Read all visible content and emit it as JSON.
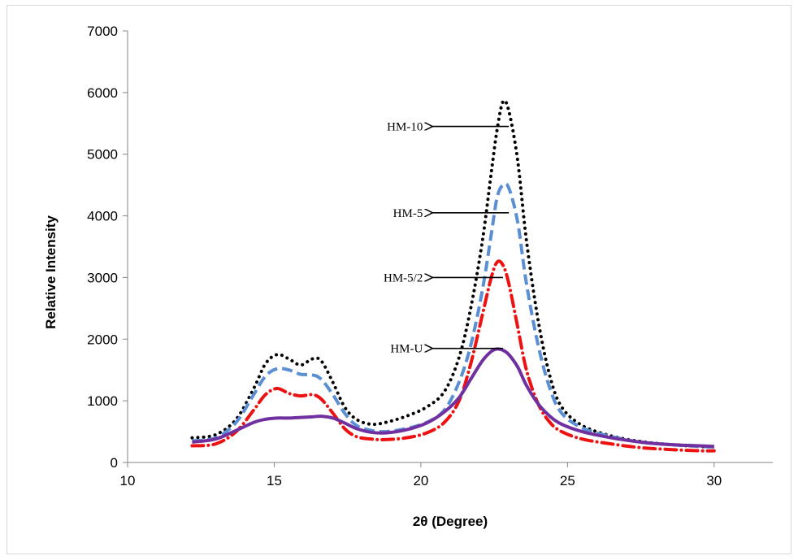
{
  "chart_data": {
    "type": "line",
    "xlabel": "2θ (Degree)",
    "ylabel": "Relative Intensity",
    "xlim": [
      10,
      32
    ],
    "ylim": [
      0,
      7000
    ],
    "xticks": [
      10,
      15,
      20,
      25,
      30
    ],
    "yticks": [
      0,
      1000,
      2000,
      3000,
      4000,
      5000,
      6000,
      7000
    ],
    "grid": false,
    "legend": "none",
    "series": [
      {
        "label_ref": "HM-10",
        "color": "#000000",
        "style": "dotted",
        "x": [
          12.2,
          13.0,
          13.7,
          14.3,
          14.7,
          15.1,
          15.5,
          15.9,
          16.3,
          16.6,
          17.0,
          17.4,
          17.8,
          18.3,
          18.8,
          19.5,
          20.2,
          20.8,
          21.3,
          21.7,
          22.1,
          22.4,
          22.6,
          22.8,
          23.0,
          23.3,
          23.6,
          24.0,
          24.4,
          24.8,
          25.5,
          26.5,
          27.5,
          28.5,
          29.5,
          30.0
        ],
        "y": [
          400,
          450,
          700,
          1200,
          1600,
          1750,
          1680,
          1580,
          1680,
          1650,
          1300,
          900,
          700,
          620,
          650,
          750,
          900,
          1150,
          1700,
          2500,
          3600,
          4700,
          5400,
          5850,
          5700,
          4900,
          3600,
          2300,
          1400,
          900,
          600,
          430,
          340,
          290,
          260,
          250
        ]
      },
      {
        "label_ref": "HM-5",
        "color": "#5b8fd4",
        "style": "dashed",
        "x": [
          12.2,
          13.0,
          13.7,
          14.3,
          14.7,
          15.1,
          15.5,
          15.9,
          16.3,
          16.6,
          17.0,
          17.4,
          17.8,
          18.3,
          18.8,
          19.5,
          20.2,
          20.8,
          21.3,
          21.7,
          22.1,
          22.4,
          22.6,
          22.8,
          23.0,
          23.3,
          23.6,
          24.0,
          24.4,
          24.8,
          25.5,
          26.5,
          27.5,
          28.5,
          29.5,
          30.0
        ],
        "y": [
          350,
          400,
          650,
          1100,
          1400,
          1520,
          1500,
          1430,
          1420,
          1350,
          1100,
          800,
          600,
          520,
          500,
          550,
          650,
          850,
          1300,
          1900,
          2800,
          3700,
          4300,
          4500,
          4450,
          3900,
          2900,
          1900,
          1200,
          800,
          560,
          420,
          330,
          290,
          260,
          250
        ]
      },
      {
        "label_ref": "HM-5/2",
        "color": "#ee1111",
        "style": "dash-dot",
        "x": [
          12.2,
          13.0,
          13.7,
          14.3,
          14.7,
          15.1,
          15.5,
          15.9,
          16.3,
          16.6,
          17.0,
          17.4,
          17.8,
          18.3,
          18.8,
          19.5,
          20.2,
          20.8,
          21.3,
          21.7,
          22.1,
          22.4,
          22.6,
          22.8,
          23.0,
          23.3,
          23.6,
          24.0,
          24.4,
          24.8,
          25.5,
          26.5,
          27.5,
          28.5,
          29.5,
          30.0
        ],
        "y": [
          270,
          300,
          500,
          850,
          1100,
          1200,
          1120,
          1080,
          1100,
          1030,
          800,
          550,
          420,
          380,
          370,
          400,
          480,
          650,
          1000,
          1600,
          2400,
          3000,
          3250,
          3200,
          2900,
          2200,
          1500,
          950,
          650,
          500,
          380,
          300,
          240,
          210,
          190,
          190
        ]
      },
      {
        "label_ref": "HM-U",
        "color": "#7030a0",
        "style": "solid",
        "x": [
          12.2,
          13.0,
          13.7,
          14.3,
          14.7,
          15.1,
          15.5,
          15.9,
          16.3,
          16.6,
          17.0,
          17.4,
          17.8,
          18.3,
          18.8,
          19.5,
          20.2,
          20.8,
          21.3,
          21.7,
          22.1,
          22.4,
          22.6,
          22.8,
          23.0,
          23.3,
          23.6,
          24.0,
          24.4,
          24.8,
          25.5,
          26.5,
          27.5,
          28.5,
          29.5,
          30.0
        ],
        "y": [
          330,
          380,
          520,
          650,
          700,
          720,
          720,
          730,
          740,
          750,
          720,
          640,
          550,
          490,
          480,
          530,
          640,
          820,
          1050,
          1350,
          1650,
          1800,
          1840,
          1820,
          1750,
          1550,
          1250,
          950,
          750,
          620,
          500,
          400,
          330,
          290,
          270,
          260
        ]
      }
    ],
    "annotations": [
      {
        "text": "HM-10",
        "tip": [
          20.4,
          5450
        ],
        "tail": [
          23.0,
          5450
        ]
      },
      {
        "text": "HM-5",
        "tip": [
          20.4,
          4050
        ],
        "tail": [
          23.0,
          4050
        ]
      },
      {
        "text": "HM-5/2",
        "tip": [
          20.4,
          3000
        ],
        "tail": [
          22.8,
          3000
        ]
      },
      {
        "text": "HM-U",
        "tip": [
          20.4,
          1850
        ],
        "tail": [
          22.8,
          1850
        ]
      }
    ]
  }
}
